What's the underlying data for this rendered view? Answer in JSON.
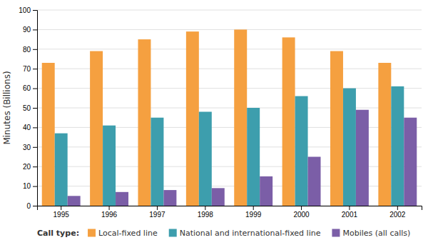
{
  "chart_data": {
    "type": "bar",
    "categories": [
      "1995",
      "1996",
      "1997",
      "1998",
      "1999",
      "2000",
      "2001",
      "2002"
    ],
    "series": [
      {
        "name": "Local-fixed line",
        "color": "#F5A040",
        "values": [
          73,
          79,
          85,
          89,
          90,
          86,
          79,
          73
        ]
      },
      {
        "name": "National and international-fixed line",
        "color": "#3D9EAD",
        "values": [
          37,
          41,
          45,
          48,
          50,
          56,
          60,
          61
        ]
      },
      {
        "name": "Mobiles (all calls)",
        "color": "#7B5EA7",
        "values": [
          5,
          7,
          8,
          9,
          15,
          25,
          49,
          45
        ]
      }
    ],
    "ylabel": "Minutes (Billions)",
    "legend_title": "Call type:",
    "legend": "bottom",
    "ylim": [
      0,
      100
    ],
    "yticks": [
      0,
      10,
      20,
      30,
      40,
      50,
      60,
      70,
      80,
      90,
      100
    ],
    "grid": true
  }
}
